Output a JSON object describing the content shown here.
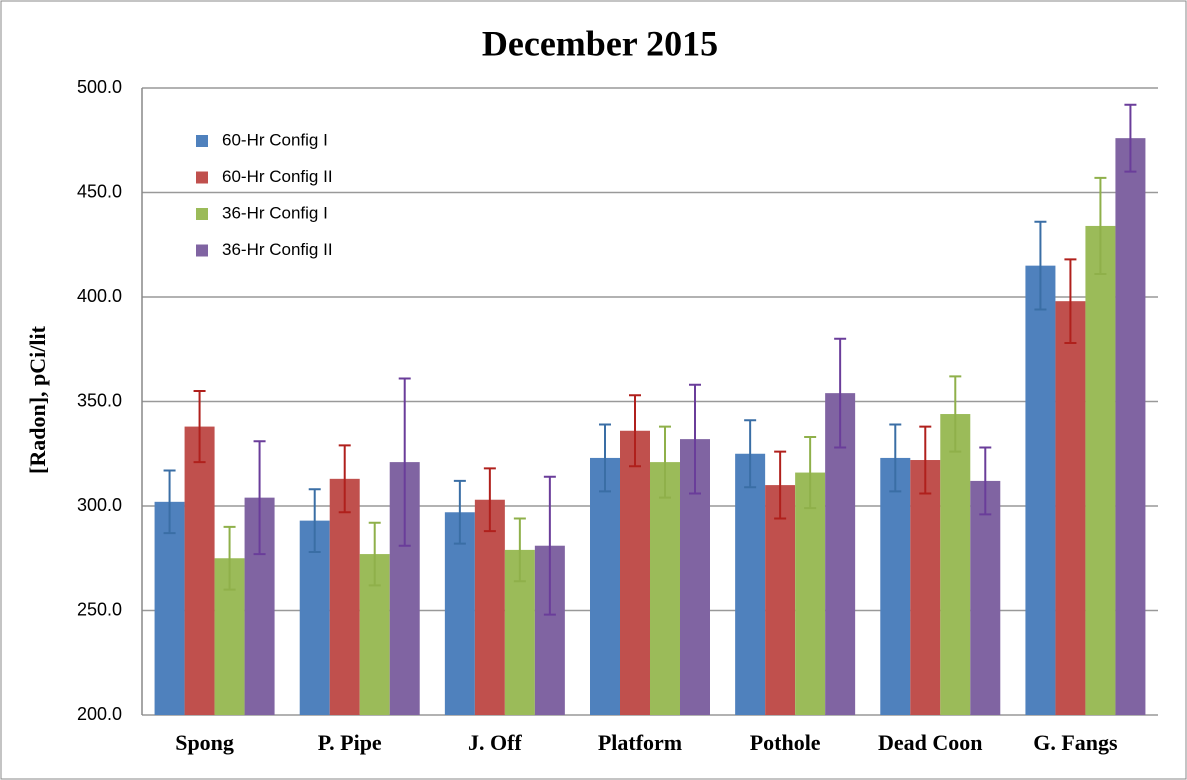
{
  "chart_data": {
    "type": "bar",
    "title": "December 2015",
    "y_label": "[Radon], pCi/lit",
    "categories": [
      "Spong",
      "P. Pipe",
      "J. Off",
      "Platform",
      "Pothole",
      "Dead Coon",
      "G. Fangs"
    ],
    "series": [
      {
        "name": "60-Hr Config I",
        "color": "#4f81bd",
        "error_color": "#3a6ea5",
        "values": [
          302,
          293,
          297,
          323,
          325,
          323,
          415
        ],
        "errors": [
          15,
          15,
          15,
          16,
          16,
          16,
          21
        ]
      },
      {
        "name": "60-Hr Config II",
        "color": "#c0504d",
        "error_color": "#b0201c",
        "values": [
          338,
          313,
          303,
          336,
          310,
          322,
          398
        ],
        "errors": [
          17,
          16,
          15,
          17,
          16,
          16,
          20
        ]
      },
      {
        "name": "36-Hr Config I",
        "color": "#9bbb59",
        "error_color": "#8fb04a",
        "values": [
          275,
          277,
          279,
          321,
          316,
          344,
          434
        ],
        "errors": [
          15,
          15,
          15,
          17,
          17,
          18,
          23
        ]
      },
      {
        "name": "36-Hr Config II",
        "color": "#8064a2",
        "error_color": "#6a3d9a",
        "values": [
          304,
          321,
          281,
          332,
          354,
          312,
          476
        ],
        "errors": [
          27,
          40,
          33,
          26,
          26,
          16,
          16
        ]
      }
    ],
    "ylim": [
      200,
      500
    ],
    "yticks": [
      {
        "value": 200,
        "label": "200.0"
      },
      {
        "value": 250,
        "label": "250.0"
      },
      {
        "value": 300,
        "label": "300.0"
      },
      {
        "value": 350,
        "label": "350.0"
      },
      {
        "value": 400,
        "label": "400.0"
      },
      {
        "value": 450,
        "label": "450.0"
      },
      {
        "value": 500,
        "label": "500.0"
      }
    ],
    "grid": true,
    "legend": "upper left"
  }
}
